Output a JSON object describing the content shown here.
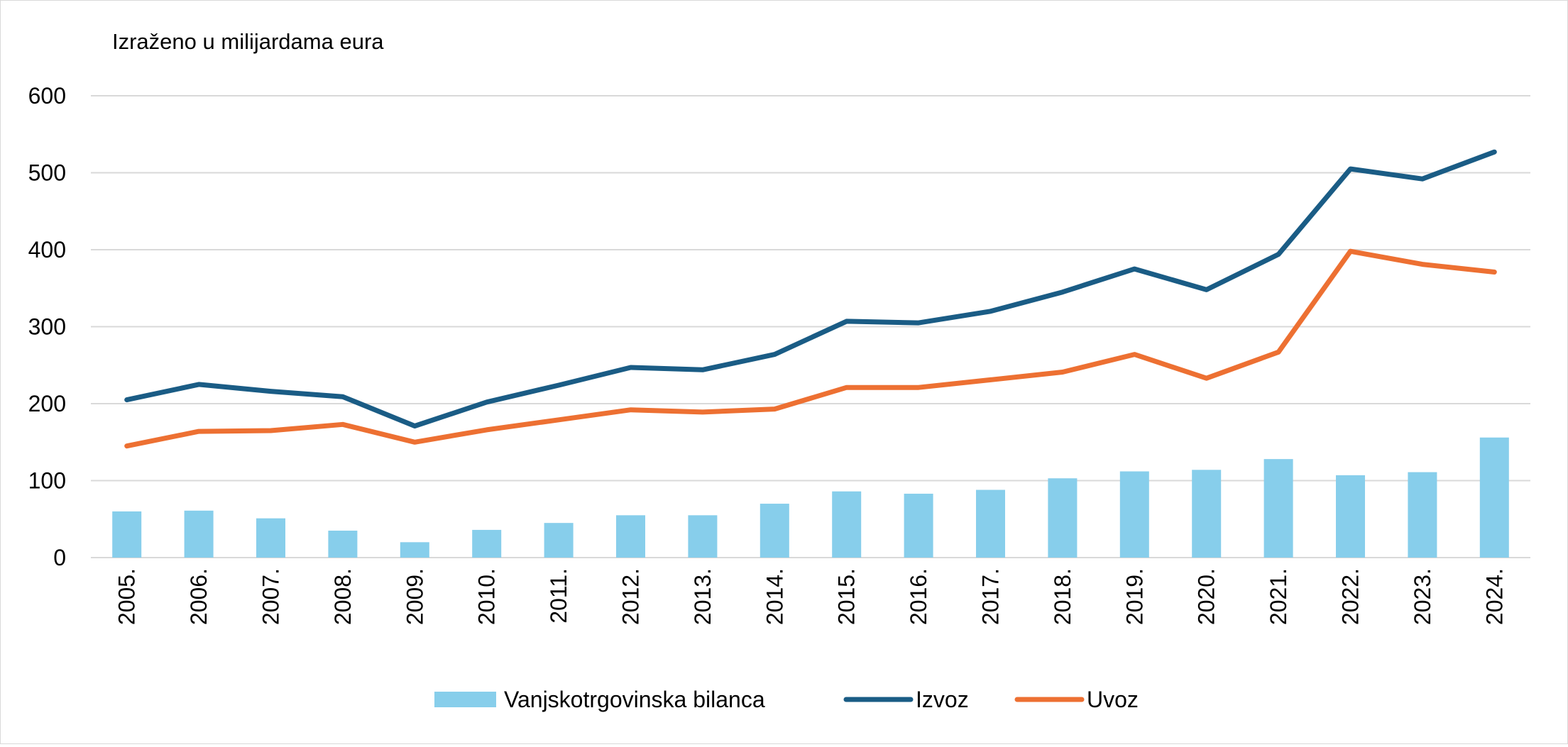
{
  "chart_data": {
    "type": "bar+line",
    "subtitle": "Izraženo u milijardama eura",
    "categories": [
      "2005.",
      "2006.",
      "2007.",
      "2008.",
      "2009.",
      "2010.",
      "2011.",
      "2012.",
      "2013.",
      "2014.",
      "2015.",
      "2016.",
      "2017.",
      "2018.",
      "2019.",
      "2020.",
      "2021.",
      "2022.",
      "2023.",
      "2024."
    ],
    "ylim": [
      0,
      600
    ],
    "yticks": [
      "0",
      "100",
      "200",
      "300",
      "400",
      "500",
      "600"
    ],
    "grid": "horizontal",
    "legend_position": "bottom",
    "series": [
      {
        "name": "Vanjskotrgovinska bilanca",
        "type": "bar",
        "color": "#87ceeb",
        "values": [
          60,
          61,
          51,
          35,
          20,
          36,
          45,
          55,
          55,
          70,
          86,
          83,
          88,
          103,
          112,
          114,
          128,
          107,
          111,
          156
        ]
      },
      {
        "name": "Izvoz",
        "type": "line",
        "color": "#1a5c85",
        "values": [
          205,
          225,
          216,
          209,
          171,
          202,
          224,
          247,
          244,
          264,
          307,
          305,
          320,
          345,
          375,
          348,
          394,
          505,
          492,
          527
        ]
      },
      {
        "name": "Uvoz",
        "type": "line",
        "color": "#ed7032",
        "values": [
          145,
          164,
          165,
          173,
          150,
          166,
          179,
          192,
          189,
          193,
          221,
          221,
          231,
          241,
          264,
          233,
          267,
          398,
          381,
          371
        ]
      }
    ]
  }
}
